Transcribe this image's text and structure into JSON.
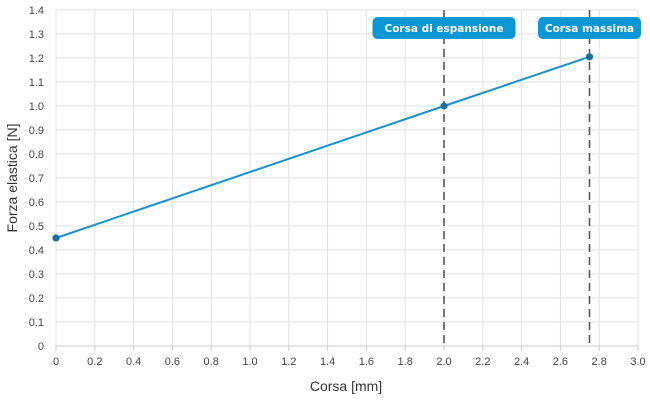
{
  "chart_data": {
    "type": "line",
    "xlabel": "Corsa [mm]",
    "ylabel": "Forza elastica [N]",
    "xlim": [
      0,
      3.0
    ],
    "ylim": [
      0,
      1.4
    ],
    "x_ticks": [
      "0",
      "0.2",
      "0.4",
      "0.6",
      "0.8",
      "1.0",
      "1.2",
      "1.4",
      "1.6",
      "1.8",
      "2.0",
      "2.2",
      "2.4",
      "2.6",
      "2.8",
      "3.0"
    ],
    "y_ticks": [
      "0",
      "0.1",
      "0.2",
      "0.3",
      "0.4",
      "0.5",
      "0.6",
      "0.7",
      "0.8",
      "0.9",
      "1.0",
      "1.1",
      "1.2",
      "1.3",
      "1.4"
    ],
    "grid": true,
    "series": [
      {
        "x": [
          0,
          2.0,
          2.75
        ],
        "y": [
          0.45,
          1.0,
          1.205
        ]
      }
    ],
    "markers": [
      {
        "x": 2.0,
        "label": "Corsa di espansione"
      },
      {
        "x": 2.75,
        "label": "Corsa massima"
      }
    ],
    "colors": {
      "line": "#1891d1",
      "point": "#1a6fa0",
      "flag": "#0b97d6",
      "grid": "#e2e2e2",
      "marker_line": "#555555"
    }
  }
}
